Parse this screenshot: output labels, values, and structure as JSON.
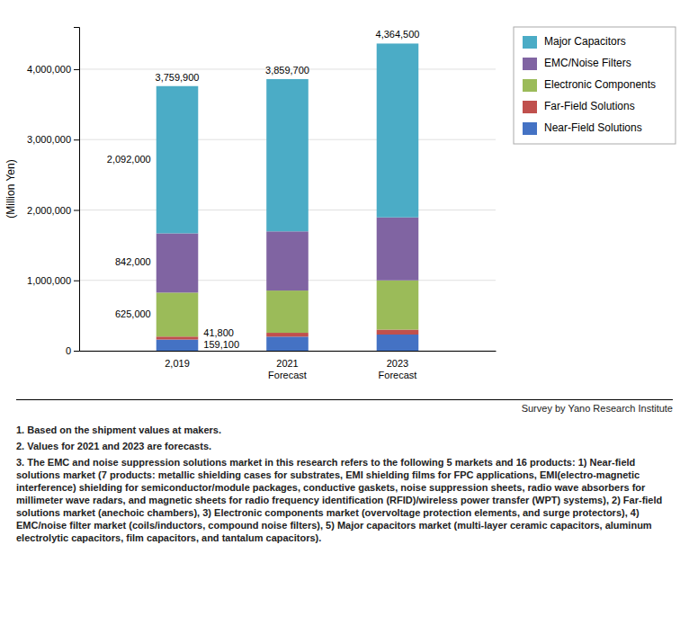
{
  "chart_data": {
    "type": "bar",
    "stacked": true,
    "categories": [
      "2,019",
      "2021\nForecast",
      "2023\nForecast"
    ],
    "series": [
      {
        "name": "Near-Field Solutions",
        "color": "#4472C4",
        "values": [
          159100,
          200000,
          230000
        ],
        "value_labels": [
          "159,100",
          null,
          null
        ]
      },
      {
        "name": "Far-Field Solutions",
        "color": "#C0504D",
        "values": [
          41800,
          55000,
          70000
        ],
        "value_labels": [
          "41,800",
          null,
          null
        ]
      },
      {
        "name": "Electronic Components",
        "color": "#9BBB59",
        "values": [
          625000,
          600000,
          700000
        ],
        "value_labels": [
          "625,000",
          null,
          null
        ]
      },
      {
        "name": "EMC/Noise Filters",
        "color": "#8064A2",
        "values": [
          842000,
          840700,
          895000
        ],
        "value_labels": [
          "842,000",
          null,
          null
        ]
      },
      {
        "name": "Major Capacitors",
        "color": "#4BACC6",
        "values": [
          2092000,
          2164000,
          2469500
        ],
        "value_labels": [
          "2,092,000",
          null,
          null
        ]
      }
    ],
    "data_labels": true,
    "totals": [
      3759900,
      3859700,
      4364500
    ],
    "total_labels": [
      "3,759,900",
      "3,859,700",
      "4,364,500"
    ],
    "ylabel": "(Million Yen)",
    "ylim": [
      0,
      4600000
    ],
    "yticks": [
      0,
      {
        "value": 1000000,
        "label": "1,000,000"
      },
      {
        "value": 2000000,
        "label": "2,000,000"
      },
      {
        "value": 3000000,
        "label": "3,000,000"
      },
      {
        "value": 4000000,
        "label": "4,000,000"
      }
    ],
    "grid": true,
    "legend": "right",
    "source": "Survey by Yano Research Institute",
    "notes": [
      "1. Based on the shipment values at makers.",
      "2. Values for 2021 and 2023 are forecasts.",
      "3. The EMC and noise suppression solutions market in this research refers to the following 5 markets and 16 products: 1) Near-field solutions market (7 products: metallic shielding cases for substrates, EMI shielding films for FPC applications, EMI(electro-magnetic interference) shielding for semiconductor/module packages, conductive gaskets, noise suppression sheets, radio wave absorbers for millimeter wave radars, and magnetic sheets for radio frequency identification (RFID)/wireless power transfer (WPT) systems), 2) Far-field solutions market (anechoic chambers), 3) Electronic components market (overvoltage protection elements, and surge protectors), 4) EMC/noise filter market (coils/inductors, compound noise filters), 5) Major capacitors market (multi-layer ceramic capacitors, aluminum electrolytic capacitors, film capacitors, and tantalum capacitors)."
    ]
  }
}
